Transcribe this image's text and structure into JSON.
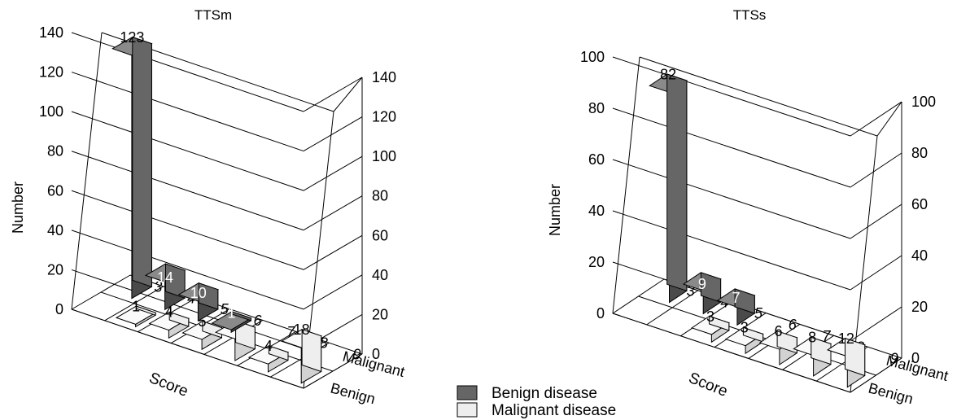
{
  "colors": {
    "benign": "#666666",
    "benign_side": "#4a4a4a",
    "benign_top": "#8a8a8a",
    "malignant": "#eeeeee",
    "malignant_side": "#d2d2d2",
    "malignant_top": "#fafafa",
    "axis": "#000000"
  },
  "legend": {
    "benign_label": "Benign disease",
    "malignant_label": "Malignant disease",
    "placement": "bottom-center"
  },
  "chart_data": [
    {
      "type": "bar",
      "title": "TTSm",
      "xlabel": "Score",
      "ylabel": "Number",
      "categories": [
        "3",
        "4",
        "5",
        "6",
        "7",
        "8",
        "9"
      ],
      "depth_labels": [
        "Malignant",
        "Benign"
      ],
      "yticks": [
        "0",
        "20",
        "40",
        "60",
        "80",
        "100",
        "120",
        "140"
      ],
      "ylim": [
        0,
        140
      ],
      "grid": true,
      "series": [
        {
          "name": "Benign disease",
          "values": [
            123,
            14,
            10,
            1,
            0,
            0,
            0
          ],
          "labels": [
            "123",
            "14",
            "10",
            "1",
            "",
            "",
            ""
          ]
        },
        {
          "name": "Malignant disease",
          "values": [
            0,
            1,
            4,
            5,
            11,
            4,
            18
          ],
          "labels": [
            "",
            "1",
            "4",
            "5",
            "11",
            "4",
            "18"
          ]
        }
      ]
    },
    {
      "type": "bar",
      "title": "TTSs",
      "xlabel": "Score",
      "ylabel": "Number",
      "categories": [
        "3",
        "4",
        "5",
        "6",
        "7",
        "8",
        "9"
      ],
      "depth_labels": [
        "Malignant",
        "Benign"
      ],
      "yticks": [
        "0",
        "20",
        "40",
        "60",
        "80",
        "100"
      ],
      "ylim": [
        0,
        100
      ],
      "grid": true,
      "series": [
        {
          "name": "Benign disease",
          "values": [
            82,
            9,
            7,
            0,
            0,
            0,
            0
          ],
          "labels": [
            "82",
            "9",
            "7",
            "",
            "",
            "",
            ""
          ]
        },
        {
          "name": "Malignant disease",
          "values": [
            0,
            0,
            3,
            3,
            6,
            8,
            12
          ],
          "labels": [
            "",
            "",
            "3",
            "3",
            "6",
            "8",
            "12"
          ]
        }
      ]
    }
  ]
}
